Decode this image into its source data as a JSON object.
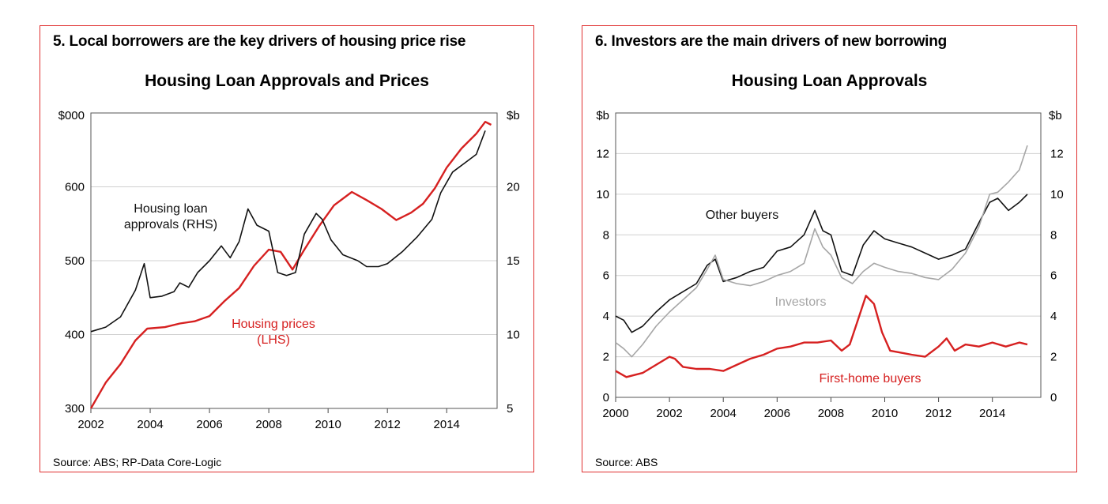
{
  "colors": {
    "border": "#e03030",
    "red_series": "#d62020",
    "black_series": "#111111",
    "grey_series": "#a6a6a6",
    "grid": "#d0d0d0"
  },
  "charts": [
    {
      "heading": "5. Local borrowers are the key drivers of housing price rise",
      "title": "Housing Loan Approvals and Prices",
      "source": "Source: ABS;  RP-Data Core-Logic",
      "chart_data": {
        "type": "line",
        "title": "Housing Loan Approvals and Prices",
        "left_axis": {
          "unit": "$000",
          "ticks": [
            "300",
            "400",
            "500",
            "600",
            "$000"
          ],
          "ylim": [
            300,
            700
          ]
        },
        "right_axis": {
          "unit": "$b",
          "ticks": [
            "5",
            "10",
            "15",
            "20",
            "$b"
          ],
          "ylim": [
            5,
            25
          ]
        },
        "x_ticks": [
          "2002",
          "2004",
          "2006",
          "2008",
          "2010",
          "2012",
          "2014"
        ],
        "xlim": [
          2002,
          2015.7
        ],
        "grid": "horizontal",
        "annotations": [
          {
            "lines": [
              "Housing loan",
              "approvals (RHS)"
            ],
            "color": "#111111"
          },
          {
            "lines": [
              "Housing prices",
              "(LHS)"
            ],
            "color": "#d62020"
          }
        ],
        "series": [
          {
            "axis": "left",
            "color": "#d62020",
            "x": [
              2002,
              2002.5,
              2003,
              2003.5,
              2003.9,
              2004.5,
              2005,
              2005.5,
              2006,
              2006.5,
              2007,
              2007.5,
              2008,
              2008.4,
              2008.8,
              2009.2,
              2009.7,
              2010.2,
              2010.8,
              2011.3,
              2011.8,
              2012.3,
              2012.8,
              2013.2,
              2013.6,
              2014,
              2014.5,
              2015,
              2015.3,
              2015.5
            ],
            "y": [
              300,
              335,
              360,
              392,
              408,
              410,
              415,
              418,
              425,
              445,
              463,
              493,
              515,
              512,
              488,
              515,
              547,
              575,
              593,
              582,
              570,
              555,
              565,
              577,
              598,
              626,
              652,
              672,
              688,
              684
            ]
          },
          {
            "axis": "right",
            "color": "#111111",
            "x": [
              2002,
              2002.5,
              2003,
              2003.5,
              2003.8,
              2004,
              2004.4,
              2004.8,
              2005,
              2005.3,
              2005.6,
              2006,
              2006.4,
              2006.7,
              2007,
              2007.3,
              2007.6,
              2008,
              2008.3,
              2008.6,
              2008.9,
              2009.2,
              2009.6,
              2009.8,
              2010.1,
              2010.5,
              2011,
              2011.3,
              2011.7,
              2012,
              2012.5,
              2013,
              2013.5,
              2013.8,
              2014.2,
              2014.6,
              2015,
              2015.3
            ],
            "y": [
              10.2,
              10.5,
              11.2,
              13.0,
              14.8,
              12.5,
              12.6,
              12.9,
              13.5,
              13.2,
              14.2,
              15.0,
              16.0,
              15.2,
              16.3,
              18.5,
              17.4,
              17.0,
              14.2,
              14.0,
              14.2,
              16.8,
              18.2,
              17.8,
              16.4,
              15.4,
              15.0,
              14.6,
              14.6,
              14.8,
              15.6,
              16.6,
              17.8,
              19.6,
              21.0,
              21.6,
              22.2,
              23.8
            ]
          }
        ]
      }
    },
    {
      "heading": "6.  Investors are the main drivers of new borrowing",
      "title": "Housing Loan Approvals",
      "source": "Source: ABS",
      "chart_data": {
        "type": "line",
        "title": "Housing Loan Approvals",
        "left_axis": {
          "unit": "$b",
          "ticks": [
            "0",
            "2",
            "4",
            "6",
            "8",
            "10",
            "12",
            "$b"
          ],
          "ylim": [
            0,
            14
          ]
        },
        "right_axis": {
          "unit": "$b",
          "ticks": [
            "0",
            "2",
            "4",
            "6",
            "8",
            "10",
            "12",
            "$b"
          ],
          "ylim": [
            0,
            14
          ]
        },
        "x_ticks": [
          "2000",
          "2002",
          "2004",
          "2006",
          "2008",
          "2010",
          "2012",
          "2014"
        ],
        "xlim": [
          2000,
          2015.8
        ],
        "grid": "horizontal",
        "annotations": [
          {
            "lines": [
              "Other buyers"
            ],
            "color": "#111111"
          },
          {
            "lines": [
              "Investors"
            ],
            "color": "#a6a6a6"
          },
          {
            "lines": [
              "First-home buyers"
            ],
            "color": "#d62020"
          }
        ],
        "series": [
          {
            "name": "Other buyers",
            "color": "#111111",
            "x": [
              2000,
              2000.3,
              2000.6,
              2001,
              2001.5,
              2002,
              2002.5,
              2003,
              2003.4,
              2003.7,
              2004,
              2004.5,
              2005,
              2005.5,
              2006,
              2006.5,
              2007,
              2007.4,
              2007.7,
              2008,
              2008.4,
              2008.8,
              2009.2,
              2009.6,
              2010,
              2010.5,
              2011,
              2011.5,
              2012,
              2012.5,
              2013,
              2013.5,
              2013.9,
              2014.2,
              2014.6,
              2015,
              2015.3
            ],
            "y": [
              4.0,
              3.8,
              3.2,
              3.5,
              4.2,
              4.8,
              5.2,
              5.6,
              6.5,
              6.8,
              5.7,
              5.9,
              6.2,
              6.4,
              7.2,
              7.4,
              8.0,
              9.2,
              8.2,
              8.0,
              6.2,
              6.0,
              7.5,
              8.2,
              7.8,
              7.6,
              7.4,
              7.1,
              6.8,
              7.0,
              7.3,
              8.6,
              9.6,
              9.8,
              9.2,
              9.6,
              10.0
            ]
          },
          {
            "name": "Investors",
            "color": "#a6a6a6",
            "x": [
              2000,
              2000.3,
              2000.6,
              2001,
              2001.5,
              2002,
              2002.5,
              2003,
              2003.4,
              2003.7,
              2004,
              2004.5,
              2005,
              2005.5,
              2006,
              2006.5,
              2007,
              2007.4,
              2007.7,
              2008,
              2008.4,
              2008.8,
              2009.2,
              2009.6,
              2010,
              2010.5,
              2011,
              2011.5,
              2012,
              2012.5,
              2013,
              2013.5,
              2013.9,
              2014.2,
              2014.6,
              2015,
              2015.3
            ],
            "y": [
              2.7,
              2.4,
              2.0,
              2.6,
              3.5,
              4.2,
              4.8,
              5.4,
              6.3,
              7.0,
              5.8,
              5.6,
              5.5,
              5.7,
              6.0,
              6.2,
              6.6,
              8.3,
              7.4,
              7.0,
              5.9,
              5.6,
              6.2,
              6.6,
              6.4,
              6.2,
              6.1,
              5.9,
              5.8,
              6.3,
              7.1,
              8.4,
              10.0,
              10.1,
              10.6,
              11.2,
              12.4
            ]
          },
          {
            "name": "First-home buyers",
            "color": "#d62020",
            "x": [
              2000,
              2000.4,
              2000.7,
              2001,
              2001.5,
              2002,
              2002.2,
              2002.5,
              2003,
              2003.5,
              2004,
              2004.5,
              2005,
              2005.5,
              2006,
              2006.5,
              2007,
              2007.5,
              2008,
              2008.4,
              2008.7,
              2009,
              2009.3,
              2009.6,
              2009.9,
              2010.2,
              2010.6,
              2011,
              2011.5,
              2012,
              2012.3,
              2012.6,
              2013,
              2013.5,
              2014,
              2014.5,
              2015,
              2015.3
            ],
            "y": [
              1.3,
              1.0,
              1.1,
              1.2,
              1.6,
              2.0,
              1.9,
              1.5,
              1.4,
              1.4,
              1.3,
              1.6,
              1.9,
              2.1,
              2.4,
              2.5,
              2.7,
              2.7,
              2.8,
              2.3,
              2.6,
              3.8,
              5.0,
              4.6,
              3.2,
              2.3,
              2.2,
              2.1,
              2.0,
              2.5,
              2.9,
              2.3,
              2.6,
              2.5,
              2.7,
              2.5,
              2.7,
              2.6
            ]
          }
        ]
      }
    }
  ]
}
